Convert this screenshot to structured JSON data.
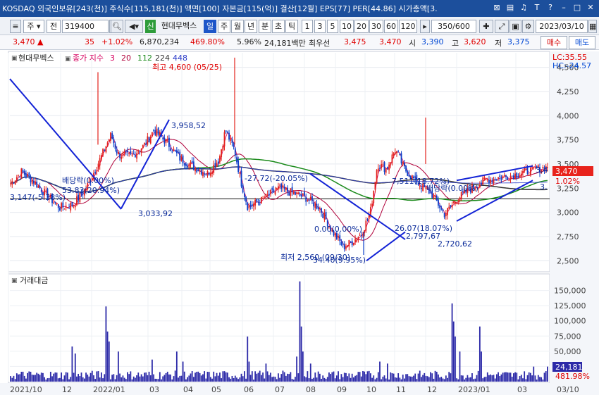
{
  "window": {
    "title": "KOSDAQ 외국인보유[243(천)] 주식수[115,181(천)] 액면[100] 자본금[115(억)] 결산[12월] EPS[77] PER[44.86] 시가총액[3."
  },
  "toolbar": {
    "type_label": "주",
    "mode_label": "전",
    "code_value": "319400",
    "stock_badge": "신",
    "stock_name": "현대무벡스",
    "period_tabs": [
      "일",
      "주",
      "월",
      "년",
      "분",
      "초",
      "틱"
    ],
    "interval_buttons": [
      "1",
      "3",
      "5",
      "10",
      "20",
      "30",
      "60",
      "120"
    ],
    "count_value": "350/600",
    "date_value": "2023/03/10"
  },
  "quote": {
    "price": "3,470",
    "change": "35",
    "change_pct": "+1.02%",
    "volume": "6,870,234",
    "volume_ratio": "469.80%",
    "turnover": "5.96%",
    "amount": "24,181백만",
    "pref_label": "최우선",
    "ask": "3,475",
    "bid": "3,470",
    "open_label": "시",
    "open": "3,390",
    "high_label": "고",
    "high": "3,620",
    "low_label": "저",
    "low": "3,375",
    "buy_label": "매수",
    "sell_label": "매도"
  },
  "colors": {
    "candle_up": "#e3211c",
    "candle_down": "#0b3ec9",
    "ma3": "#d6005f",
    "ma20": "#b0003a",
    "ma112": "#1a8a1a",
    "ma224": "#333333",
    "ma448": "#2a3ac8",
    "volume_bar": "#2c2aa8",
    "trendline": "#1323d6"
  },
  "chart_data": [
    {
      "type": "candlestick",
      "title": "현대무벡스",
      "legend": {
        "label": "종가 지수",
        "periods": [
          "3",
          "20",
          "112",
          "224",
          "448"
        ]
      },
      "ylim": [
        2400,
        4650
      ],
      "yticks": [
        "4,500",
        "4,250",
        "4,000",
        "3,750",
        "3,500",
        "3,250",
        "3,000",
        "2,750",
        "2,500"
      ],
      "ytick_values": [
        4500,
        4250,
        4000,
        3750,
        3500,
        3250,
        3000,
        2750,
        2500
      ],
      "xticks": [
        "2021/10",
        "12",
        "2022/01",
        "03",
        "04",
        "05",
        "06",
        "07",
        "08",
        "09",
        "10",
        "11",
        "12",
        "2023/01",
        "03",
        "03/10"
      ],
      "corner_labels": {
        "lc": "LC:35.55",
        "hc": "HC:-24.57"
      },
      "last_price_tag": "3,470",
      "last_change_tag": "1.02%",
      "right_level_labels": [
        "3,4",
        "3,"
      ],
      "annotations": {
        "high": "최고 4,600 (05/25)",
        "low": "최저 2,560 (09/30)",
        "dividend": "배당락(0.00%)",
        "a1": "53.83(20.94%)",
        "a2": "3,147(-5.38%)",
        "a3": "3,033,92",
        "a4": "3,958,52",
        "a5": "-27.72(-20.05%)",
        "a6": "0.00(0.00%)",
        "a7": "34.40(9.95%)",
        "a8": "2,797,67",
        "a9": "2,720,62",
        "a10": "26.07(18.07%)",
        "a11": "7,511(18.72%)",
        "a12": "배당락(0.00%)"
      },
      "horizontal_level": 3140,
      "key_prices": {
        "high": 4600,
        "low": 2560,
        "last": 3470
      },
      "trendlines": [
        {
          "from": [
            "2021/10",
            4380
          ],
          "to": [
            "2022/02",
            3033
          ]
        },
        {
          "from": [
            "2022/02",
            3040
          ],
          "to": [
            "2022/03",
            3958
          ]
        },
        {
          "from": [
            "2022/08",
            3400
          ],
          "to": [
            "2022/11",
            2720
          ]
        },
        {
          "from": [
            "2022/09",
            2500
          ],
          "to": [
            "2022/11",
            2797
          ]
        },
        {
          "from": [
            "2022/12",
            3330
          ],
          "to": [
            "2023/03",
            3480
          ]
        },
        {
          "from": [
            "2022/12",
            2910
          ],
          "to": [
            "2023/03",
            3330
          ]
        }
      ]
    },
    {
      "type": "bar",
      "title": "거래대금",
      "ylim": [
        0,
        175000
      ],
      "yticks": [
        "150,000",
        "125,000",
        "100,000",
        "75,000",
        "50,000",
        "25,000"
      ],
      "ytick_values": [
        150000,
        125000,
        100000,
        75000,
        50000,
        25000
      ],
      "last_value_tag": "24,181",
      "last_ratio_tag": "481.98%",
      "peak_value": 165000
    }
  ]
}
